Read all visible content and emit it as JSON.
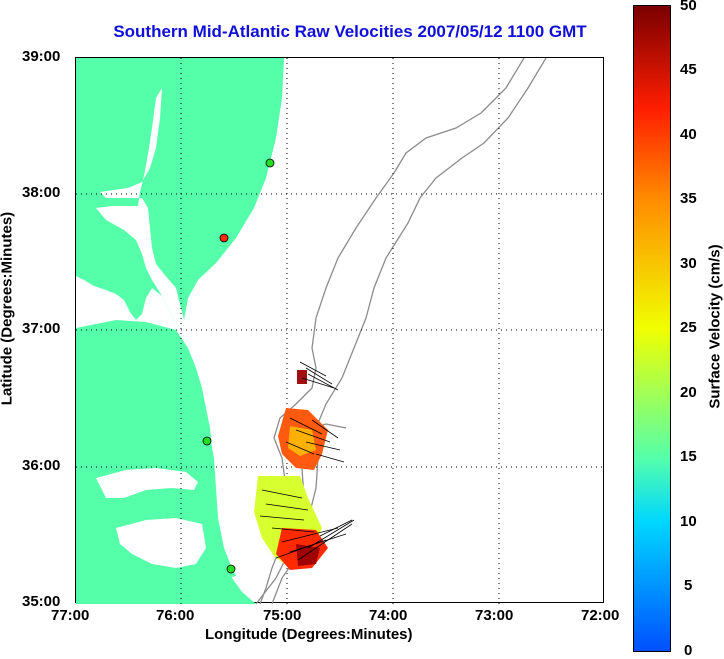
{
  "title": "Southern Mid-Atlantic Raw Velocities 2007/05/12 1100 GMT",
  "x_axis": {
    "label": "Longitude (Degrees:Minutes)",
    "ticks": [
      "77:00",
      "76:00",
      "75:00",
      "74:00",
      "73:00",
      "72:00"
    ]
  },
  "y_axis": {
    "label": "Latitude (Degrees:Minutes)",
    "ticks": [
      "39:00",
      "38:00",
      "37:00",
      "36:00",
      "35:00"
    ]
  },
  "colorbar": {
    "label": "Surface Velocity (cm/s)",
    "ticks": [
      "50",
      "45",
      "40",
      "35",
      "30",
      "25",
      "20",
      "15",
      "10",
      "5",
      "0"
    ]
  },
  "colors": {
    "land": "#55ffaa",
    "contour": "#8c8c8c",
    "title": "#1010d8"
  },
  "stations": [
    {
      "lon": -75.14,
      "lat": 38.22,
      "color": "#22dd22"
    },
    {
      "lon": -75.49,
      "lat": 37.67,
      "color": "#ff2a00"
    },
    {
      "lon": -75.74,
      "lat": 36.19,
      "color": "#22dd22"
    },
    {
      "lon": -75.56,
      "lat": 35.24,
      "color": "#22dd22"
    }
  ]
}
